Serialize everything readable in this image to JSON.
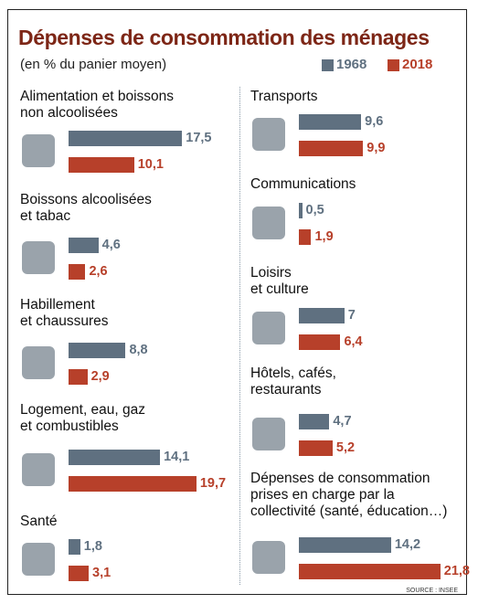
{
  "chart_data": {
    "type": "bar",
    "title": "Dépenses de consommation des ménages",
    "subtitle": "(en % du panier moyen)",
    "categories": [
      "Alimentation et boissons\nnon alcoolisées",
      "Boissons alcoolisées\net tabac",
      "Habillement\net chaussures",
      "Logement, eau, gaz\net combustibles",
      "Santé",
      "Transports",
      "Communications",
      "Loisirs\net culture",
      "Hôtels, cafés,\nrestaurants",
      "Dépenses de consommation\nprises en charge par la\ncollectivité (santé, éducation…)"
    ],
    "series": [
      {
        "name": "1968",
        "color": "#5f7080",
        "values": [
          17.5,
          4.6,
          8.8,
          14.1,
          1.8,
          9.6,
          0.5,
          7,
          4.7,
          14.2
        ],
        "value_labels": [
          "17,5",
          "4,6",
          "8,8",
          "14,1",
          "1,8",
          "9,6",
          "0,5",
          "7",
          "4,7",
          "14,2"
        ]
      },
      {
        "name": "2018",
        "color": "#b7402a",
        "values": [
          10.1,
          2.6,
          2.9,
          19.7,
          3.1,
          9.9,
          1.9,
          6.4,
          5.2,
          21.8
        ],
        "value_labels": [
          "10,1",
          "2,6",
          "2,9",
          "19,7",
          "3,1",
          "9,9",
          "1,9",
          "6,4",
          "5,2",
          "21,8"
        ]
      }
    ],
    "source": "SOURCE : INSEE"
  }
}
